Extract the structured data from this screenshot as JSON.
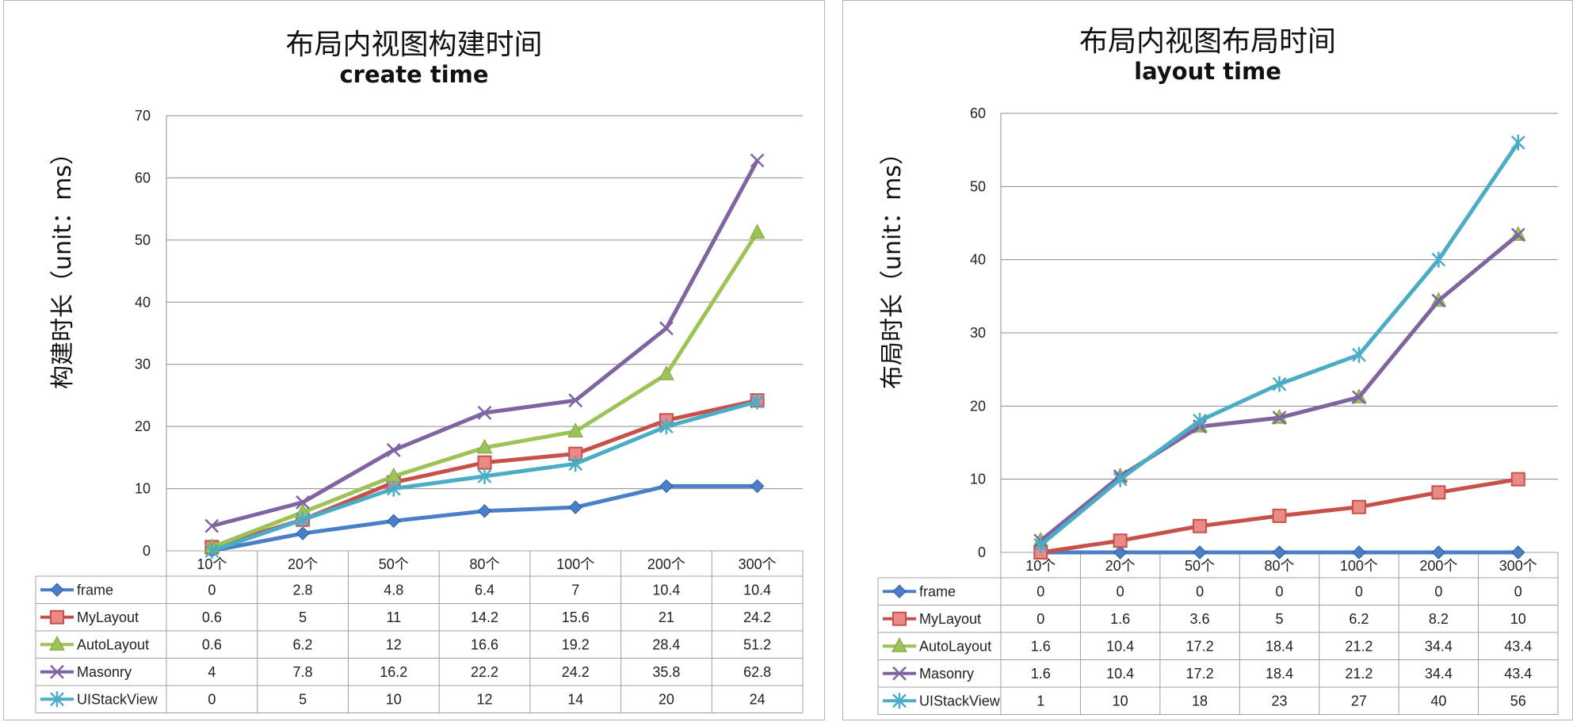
{
  "colors": {
    "frame": "#4a7fc8",
    "MyLayout": "#c8504a",
    "AutoLayout": "#9bc356",
    "Masonry": "#8064a2",
    "UIStackView": "#4bacc6",
    "grid": "#8c8c8c",
    "table_border": "#a0a0a0"
  },
  "chart_data": [
    {
      "type": "line",
      "title": "布局内视图构建时间",
      "subtitle": "create time",
      "ylabel": "构建时长（unit：ms）",
      "xlabel": "",
      "ylim": [
        0,
        70
      ],
      "yticks": [
        0,
        10,
        20,
        30,
        40,
        50,
        60,
        70
      ],
      "grid": true,
      "legend": "data-table",
      "categories": [
        "10个",
        "20个",
        "50个",
        "80个",
        "100个",
        "200个",
        "300个"
      ],
      "series": [
        {
          "name": "frame",
          "marker": "diamond",
          "values": [
            0,
            2.8,
            4.8,
            6.4,
            7,
            10.4,
            10.4
          ]
        },
        {
          "name": "MyLayout",
          "marker": "square",
          "values": [
            0.6,
            5,
            11,
            14.2,
            15.6,
            21,
            24.2
          ]
        },
        {
          "name": "AutoLayout",
          "marker": "triangle",
          "values": [
            0.6,
            6.2,
            12,
            16.6,
            19.2,
            28.4,
            51.2
          ]
        },
        {
          "name": "Masonry",
          "marker": "x",
          "values": [
            4,
            7.8,
            16.2,
            22.2,
            24.2,
            35.8,
            62.8
          ]
        },
        {
          "name": "UIStackView",
          "marker": "star",
          "values": [
            0,
            5,
            10,
            12,
            14,
            20,
            24
          ]
        }
      ]
    },
    {
      "type": "line",
      "title": "布局内视图布局时间",
      "subtitle": "layout time",
      "ylabel": "布局时长（unit：ms）",
      "xlabel": "",
      "ylim": [
        0,
        60
      ],
      "yticks": [
        0,
        10,
        20,
        30,
        40,
        50,
        60
      ],
      "grid": true,
      "legend": "data-table",
      "categories": [
        "10个",
        "20个",
        "50个",
        "80个",
        "100个",
        "200个",
        "300个"
      ],
      "series": [
        {
          "name": "frame",
          "marker": "diamond",
          "values": [
            0,
            0,
            0,
            0,
            0,
            0,
            0
          ]
        },
        {
          "name": "MyLayout",
          "marker": "square",
          "values": [
            0,
            1.6,
            3.6,
            5,
            6.2,
            8.2,
            10
          ]
        },
        {
          "name": "AutoLayout",
          "marker": "triangle",
          "values": [
            1.6,
            10.4,
            17.2,
            18.4,
            21.2,
            34.4,
            43.4
          ]
        },
        {
          "name": "Masonry",
          "marker": "x",
          "values": [
            1.6,
            10.4,
            17.2,
            18.4,
            21.2,
            34.4,
            43.4
          ]
        },
        {
          "name": "UIStackView",
          "marker": "star",
          "values": [
            1,
            10,
            18,
            23,
            27,
            40,
            56
          ]
        }
      ]
    }
  ]
}
